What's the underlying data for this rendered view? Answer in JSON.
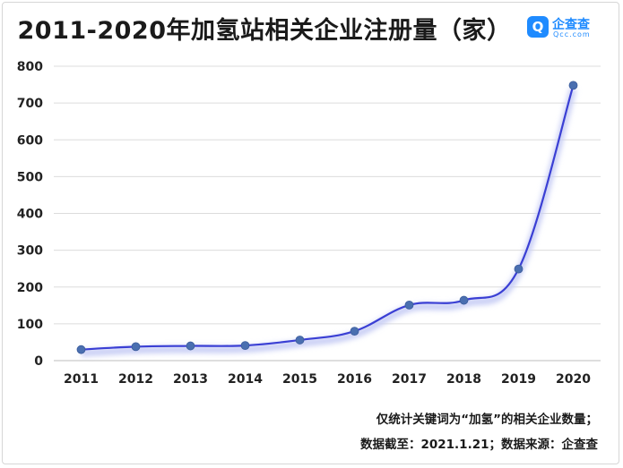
{
  "title": "2011-2020年加氢站相关企业注册量（家）",
  "logo": {
    "name": "企查查",
    "domain": "Qcc.com",
    "icon": "qcc-logo-icon"
  },
  "footnotes": [
    "仅统计关键词为“加氢”的相关企业数量；",
    "数据截至：2021.1.21；数据来源：企查查"
  ],
  "colors": {
    "line": "#3a3fd4",
    "point": "#4a6fb0",
    "grid": "#dcdcdc",
    "glow": "#c9cff5"
  },
  "chart_data": {
    "type": "line",
    "title": "2011-2020年加氢站相关企业注册量（家）",
    "categories": [
      "2011",
      "2012",
      "2013",
      "2014",
      "2015",
      "2016",
      "2017",
      "2018",
      "2019",
      "2020"
    ],
    "series": [
      {
        "values": [
          30,
          38,
          40,
          41,
          56,
          80,
          151,
          164,
          249,
          748
        ]
      }
    ],
    "ylim": [
      0,
      800
    ],
    "yticks": [
      0,
      100,
      200,
      300,
      400,
      500,
      600,
      700,
      800
    ],
    "grid": true,
    "xlabel": "",
    "ylabel": ""
  }
}
